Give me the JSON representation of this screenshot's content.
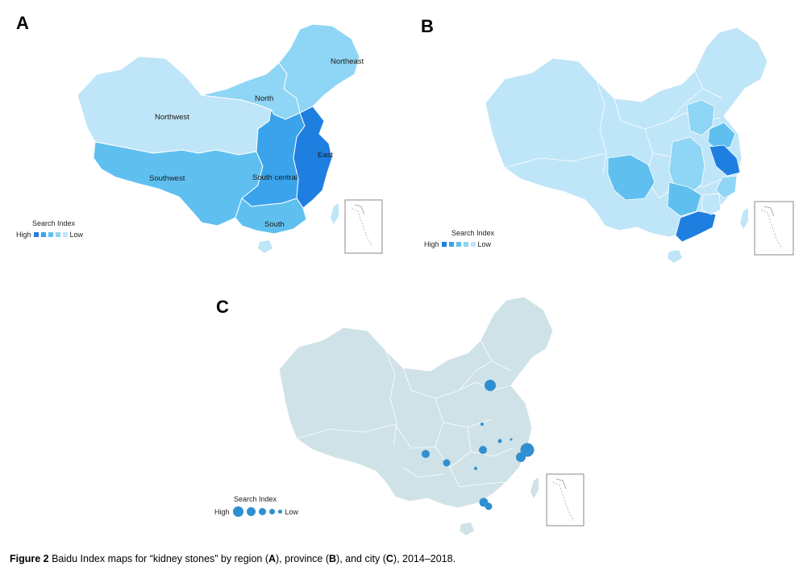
{
  "colors": {
    "high": "#1f7fe0",
    "mid_high": "#3aa3ec",
    "mid": "#5fc0f0",
    "mid_low": "#8fd5f5",
    "low": "#bfe5f8",
    "city_map": "#cfe2e7",
    "dot": "#2f8fd1"
  },
  "panel_a": {
    "letter": "A",
    "regions": [
      {
        "name": "Northeast",
        "level": "mid_low"
      },
      {
        "name": "North",
        "level": "mid_low"
      },
      {
        "name": "Northwest",
        "level": "low"
      },
      {
        "name": "Southwest",
        "level": "mid"
      },
      {
        "name": "South central",
        "level": "mid_high"
      },
      {
        "name": "East",
        "level": "high"
      },
      {
        "name": "South",
        "level": "mid"
      }
    ],
    "legend": {
      "title": "Search Index",
      "high": "High",
      "low": "Low"
    }
  },
  "panel_b": {
    "letter": "B",
    "legend": {
      "title": "Search Index",
      "high": "High",
      "low": "Low"
    }
  },
  "panel_c": {
    "letter": "C",
    "legend": {
      "title": "Search Index",
      "high": "High",
      "low": "Low"
    }
  },
  "caption": {
    "figure_label": "Figure 2",
    "text_1": " Baidu Index maps for “kidney stones” by region (",
    "a": "A",
    "text_2": "), province (",
    "b": "B",
    "text_3": "), and city (",
    "c": "C",
    "text_4": "), 2014–2018."
  }
}
